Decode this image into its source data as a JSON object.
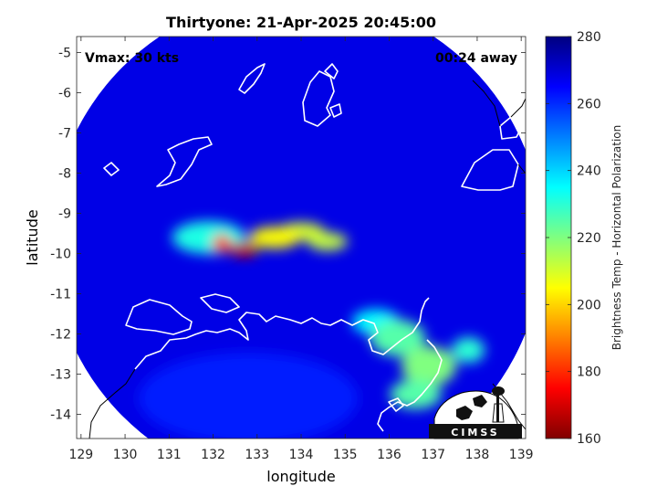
{
  "chart_data": {
    "type": "heatmap",
    "title": "Thirtyone: 21-Apr-2025 20:45:00",
    "xlabel": "longitude",
    "ylabel": "latitude",
    "xlim": [
      128.9,
      139.1
    ],
    "ylim": [
      -14.6,
      -4.6
    ],
    "x_ticks": [
      129,
      130,
      131,
      132,
      133,
      134,
      135,
      136,
      137,
      138,
      139
    ],
    "y_ticks": [
      -5,
      -6,
      -7,
      -8,
      -9,
      -10,
      -11,
      -12,
      -13,
      -14
    ],
    "annotations": {
      "vmax": "Vmax: 30 kts",
      "time_away": "00:24 away"
    },
    "colorbar": {
      "label": "Brightness Temp - Horizontal Polarization",
      "min": 160,
      "max": 280,
      "ticks": [
        160,
        180,
        200,
        220,
        240,
        260,
        280
      ],
      "colormap": "jet"
    },
    "swath": {
      "center": [
        133.9,
        -9.7
      ],
      "radius_deg": 5.6,
      "background_value": 268
    },
    "features": [
      {
        "name": "warm core 1",
        "lon": 132.7,
        "lat": -9.9,
        "value": 168
      },
      {
        "name": "warm core 2",
        "lon": 132.2,
        "lat": -9.75,
        "value": 182
      },
      {
        "name": "warm band 1",
        "lon": 133.4,
        "lat": -9.6,
        "value": 205
      },
      {
        "name": "warm band 2",
        "lon": 134.0,
        "lat": -9.45,
        "value": 210
      },
      {
        "name": "warm band 3",
        "lon": 134.6,
        "lat": -9.7,
        "value": 212
      },
      {
        "name": "cloud band west",
        "lon": 131.9,
        "lat": -9.6,
        "value": 232
      },
      {
        "name": "southeast land 1",
        "lon": 136.2,
        "lat": -12.1,
        "value": 225
      },
      {
        "name": "southeast land 2",
        "lon": 136.9,
        "lat": -12.8,
        "value": 220
      },
      {
        "name": "southeast land 3",
        "lon": 136.6,
        "lat": -13.5,
        "value": 225
      },
      {
        "name": "southeast land 4",
        "lon": 135.7,
        "lat": -11.7,
        "value": 235
      },
      {
        "name": "southeast land 5",
        "lon": 137.8,
        "lat": -12.4,
        "value": 230
      },
      {
        "name": "southwest land",
        "lon": 132.8,
        "lat": -13.6,
        "value": 262
      }
    ]
  }
}
